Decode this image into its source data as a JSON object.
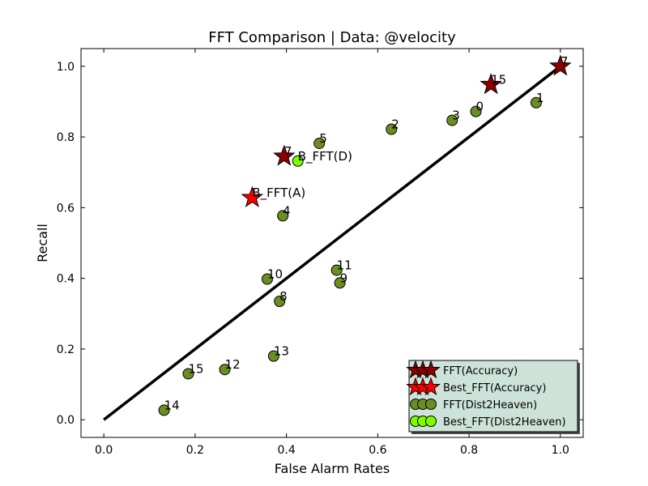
{
  "chart_data": {
    "type": "scatter",
    "title": "FFT Comparison |  Data: @velocity",
    "xlabel": "False Alarm Rates",
    "ylabel": "Recall",
    "xlim": [
      -0.05,
      1.05
    ],
    "ylim": [
      -0.05,
      1.05
    ],
    "xticks": [
      0.0,
      0.2,
      0.4,
      0.6,
      0.8,
      1.0
    ],
    "xtick_labels": [
      "0.0",
      "0.2",
      "0.4",
      "0.6",
      "0.8",
      "1.0"
    ],
    "yticks": [
      0.0,
      0.2,
      0.4,
      0.6,
      0.8,
      1.0
    ],
    "ytick_labels": [
      "0.0",
      "0.2",
      "0.4",
      "0.6",
      "0.8",
      "1.0"
    ],
    "grid": false,
    "reference_line": {
      "x": [
        0.0,
        1.0
      ],
      "y": [
        0.0,
        1.0
      ],
      "color": "#000000"
    },
    "legend": {
      "placement": "lower-right",
      "background": "#cde3da",
      "entries": [
        {
          "label": "FFT(Accuracy)",
          "marker": "star",
          "color": "#8b0000"
        },
        {
          "label": "Best_FFT(Accuracy)",
          "marker": "star",
          "color": "#ff0000"
        },
        {
          "label": "FFT(Dist2Heaven)",
          "marker": "circle",
          "color": "#6b8e23"
        },
        {
          "label": "Best_FFT(Dist2Heaven)",
          "marker": "circle",
          "color": "#7cfc00"
        }
      ]
    },
    "series": [
      {
        "name": "FFT(Accuracy)",
        "marker": "star",
        "color": "#8b0000",
        "points": [
          {
            "x": 1.0,
            "y": 1.0,
            "label": "7"
          },
          {
            "x": 0.848,
            "y": 0.948,
            "label": "15"
          },
          {
            "x": 0.395,
            "y": 0.745,
            "label": "7"
          }
        ]
      },
      {
        "name": "Best_FFT(Accuracy)",
        "marker": "star",
        "color": "#ff0000",
        "points": [
          {
            "x": 0.325,
            "y": 0.628,
            "label": "B_FFT(A)"
          }
        ]
      },
      {
        "name": "FFT(Dist2Heaven)",
        "marker": "circle",
        "color": "#6b8e23",
        "points": [
          {
            "x": 0.815,
            "y": 0.872,
            "label": "0"
          },
          {
            "x": 0.947,
            "y": 0.897,
            "label": "1"
          },
          {
            "x": 0.63,
            "y": 0.822,
            "label": "2"
          },
          {
            "x": 0.763,
            "y": 0.847,
            "label": "3"
          },
          {
            "x": 0.392,
            "y": 0.577,
            "label": "4"
          },
          {
            "x": 0.472,
            "y": 0.782,
            "label": "5"
          },
          {
            "x": 0.385,
            "y": 0.335,
            "label": "8"
          },
          {
            "x": 0.517,
            "y": 0.387,
            "label": "9"
          },
          {
            "x": 0.358,
            "y": 0.398,
            "label": "10"
          },
          {
            "x": 0.51,
            "y": 0.423,
            "label": "11"
          },
          {
            "x": 0.265,
            "y": 0.142,
            "label": "12"
          },
          {
            "x": 0.372,
            "y": 0.18,
            "label": "13"
          },
          {
            "x": 0.132,
            "y": 0.027,
            "label": "14"
          },
          {
            "x": 0.185,
            "y": 0.13,
            "label": "15"
          }
        ]
      },
      {
        "name": "Best_FFT(Dist2Heaven)",
        "marker": "circle",
        "color": "#7cfc00",
        "points": [
          {
            "x": 0.425,
            "y": 0.732,
            "label": "B_FFT(D)"
          }
        ]
      }
    ]
  }
}
